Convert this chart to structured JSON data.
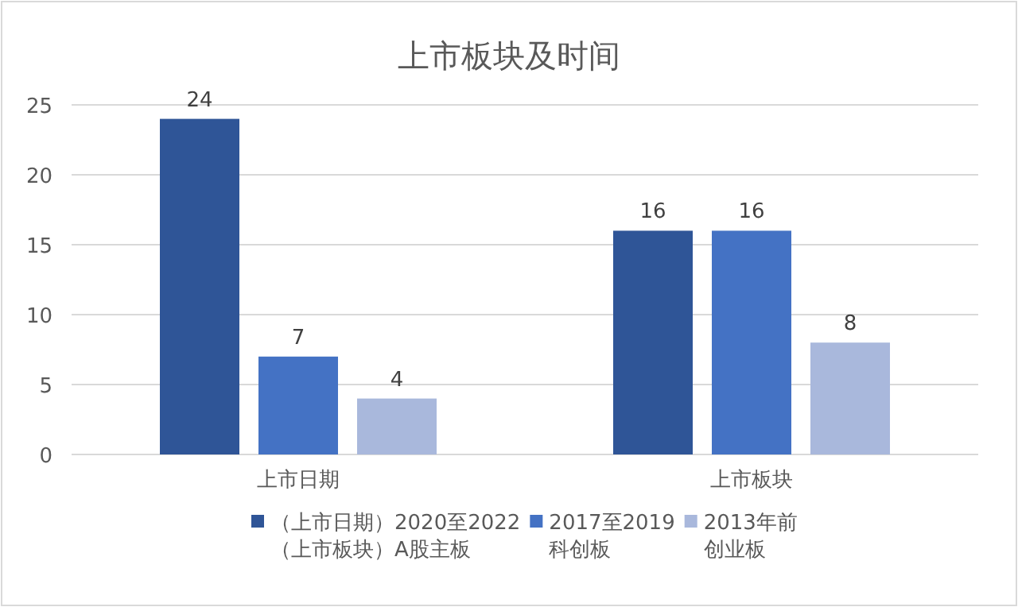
{
  "chart_data": {
    "type": "bar",
    "title": "上市板块及时间",
    "categories": [
      "上市日期",
      "上市板块"
    ],
    "series": [
      {
        "name": "（上市日期）2020至2022\n（上市板块）A股主板",
        "color": "#2f5597",
        "values": [
          24,
          16
        ]
      },
      {
        "name": "2017至2019\n科创板",
        "color": "#4472c4",
        "values": [
          7,
          16
        ]
      },
      {
        "name": "2013年前创业板",
        "color": "#a9b8dc",
        "values": [
          4,
          8
        ]
      }
    ],
    "ylim": [
      0,
      25
    ],
    "yticks": [
      0,
      5,
      10,
      15,
      20,
      25
    ],
    "grid": "y",
    "legend": "bottom",
    "data_labels": true
  }
}
